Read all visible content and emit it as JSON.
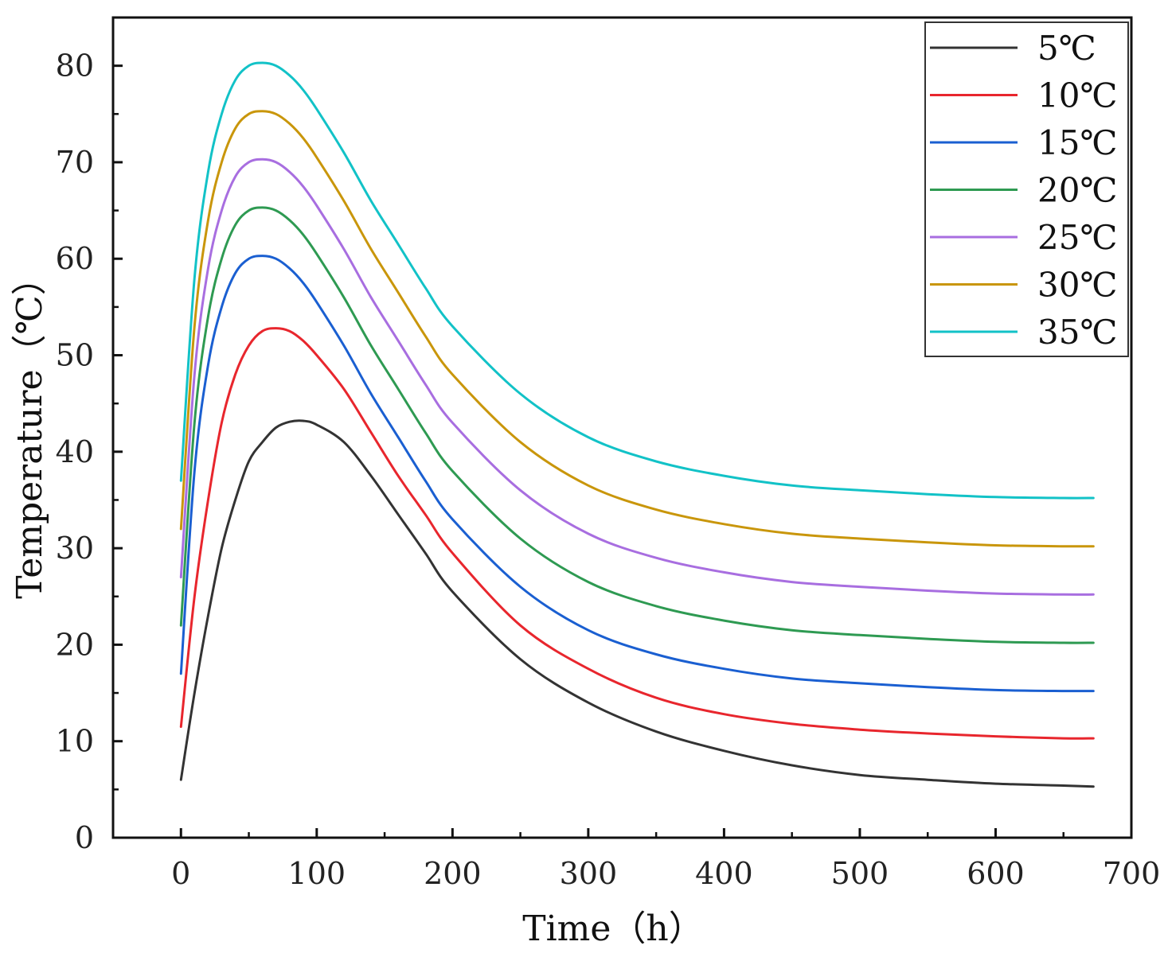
{
  "chart_data": {
    "type": "line",
    "title": "",
    "xlabel": "Time（h）",
    "ylabel": "Temperature（℃）",
    "xlim": [
      -50,
      700
    ],
    "ylim": [
      0,
      85
    ],
    "xticks": [
      0,
      100,
      200,
      300,
      400,
      500,
      600,
      700
    ],
    "xtick_labels": [
      "0",
      "100",
      "200",
      "300",
      "400",
      "500",
      "600",
      "700"
    ],
    "yticks": [
      0,
      10,
      20,
      30,
      40,
      50,
      60,
      70,
      80
    ],
    "ytick_labels": [
      "0",
      "10",
      "20",
      "30",
      "40",
      "50",
      "60",
      "70",
      "80"
    ],
    "grid": false,
    "legend_position": "top-right",
    "series": [
      {
        "name": "5℃",
        "color": "#333333",
        "x": [
          0,
          10,
          20,
          30,
          40,
          50,
          60,
          70,
          80,
          90,
          100,
          120,
          140,
          160,
          180,
          200,
          250,
          300,
          350,
          400,
          450,
          500,
          550,
          600,
          650,
          672
        ],
        "y": [
          6,
          15,
          23,
          30,
          35,
          39,
          41,
          42.5,
          43.1,
          43.2,
          42.8,
          41,
          37.5,
          33.5,
          29.5,
          25.5,
          18.5,
          14,
          11,
          9,
          7.5,
          6.5,
          6,
          5.6,
          5.4,
          5.3
        ]
      },
      {
        "name": "10℃",
        "color": "#e8262d",
        "x": [
          0,
          10,
          20,
          30,
          40,
          50,
          60,
          70,
          80,
          90,
          100,
          120,
          140,
          160,
          180,
          200,
          250,
          300,
          350,
          400,
          450,
          500,
          550,
          600,
          650,
          672
        ],
        "y": [
          11.5,
          25,
          35,
          43,
          48,
          51,
          52.5,
          52.8,
          52.5,
          51.5,
          50,
          46.5,
          42,
          37.5,
          33.5,
          29.5,
          22,
          17.5,
          14.5,
          12.8,
          11.8,
          11.2,
          10.8,
          10.5,
          10.3,
          10.3
        ]
      },
      {
        "name": "15℃",
        "color": "#1a5fd1",
        "x": [
          0,
          10,
          20,
          30,
          40,
          50,
          60,
          70,
          80,
          90,
          100,
          120,
          140,
          160,
          180,
          200,
          250,
          300,
          350,
          400,
          450,
          500,
          550,
          600,
          650,
          672
        ],
        "y": [
          17,
          38,
          49,
          55,
          58.5,
          60,
          60.3,
          60,
          59,
          57.5,
          55.5,
          51,
          46,
          41.5,
          37,
          33,
          26,
          21.5,
          19,
          17.5,
          16.5,
          16,
          15.6,
          15.3,
          15.2,
          15.2
        ]
      },
      {
        "name": "20℃",
        "color": "#2e9a52",
        "x": [
          0,
          10,
          20,
          30,
          40,
          50,
          60,
          70,
          80,
          90,
          100,
          120,
          140,
          160,
          180,
          200,
          250,
          300,
          350,
          400,
          450,
          500,
          550,
          600,
          650,
          672
        ],
        "y": [
          22,
          43,
          54,
          60,
          63.5,
          65,
          65.3,
          65,
          64,
          62.5,
          60.5,
          56,
          51,
          46.5,
          42,
          38,
          31,
          26.5,
          24,
          22.5,
          21.5,
          21,
          20.6,
          20.3,
          20.2,
          20.2
        ]
      },
      {
        "name": "25℃",
        "color": "#a86ee0",
        "x": [
          0,
          10,
          20,
          30,
          40,
          50,
          60,
          70,
          80,
          90,
          100,
          120,
          140,
          160,
          180,
          200,
          250,
          300,
          350,
          400,
          450,
          500,
          550,
          600,
          650,
          672
        ],
        "y": [
          27,
          48,
          59,
          65,
          68.5,
          70,
          70.3,
          70,
          69,
          67.5,
          65.5,
          61,
          56,
          51.5,
          47,
          43,
          36,
          31.5,
          29,
          27.5,
          26.5,
          26,
          25.6,
          25.3,
          25.2,
          25.2
        ]
      },
      {
        "name": "30℃",
        "color": "#c9960b",
        "x": [
          0,
          10,
          20,
          30,
          40,
          50,
          60,
          70,
          80,
          90,
          100,
          120,
          140,
          160,
          180,
          200,
          250,
          300,
          350,
          400,
          450,
          500,
          550,
          600,
          650,
          672
        ],
        "y": [
          32,
          53,
          64,
          70,
          73.5,
          75,
          75.3,
          75,
          74,
          72.5,
          70.5,
          66,
          61,
          56.5,
          52,
          48,
          41,
          36.5,
          34,
          32.5,
          31.5,
          31,
          30.6,
          30.3,
          30.2,
          30.2
        ]
      },
      {
        "name": "35℃",
        "color": "#12c2c7",
        "x": [
          0,
          10,
          20,
          30,
          40,
          50,
          60,
          70,
          80,
          90,
          100,
          120,
          140,
          160,
          180,
          200,
          250,
          300,
          350,
          400,
          450,
          500,
          550,
          600,
          650,
          672
        ],
        "y": [
          37,
          58,
          69,
          75,
          78.5,
          80,
          80.3,
          80,
          79,
          77.5,
          75.5,
          71,
          66,
          61.5,
          57,
          53,
          46,
          41.5,
          39,
          37.5,
          36.5,
          36,
          35.6,
          35.3,
          35.2,
          35.2
        ]
      }
    ]
  }
}
